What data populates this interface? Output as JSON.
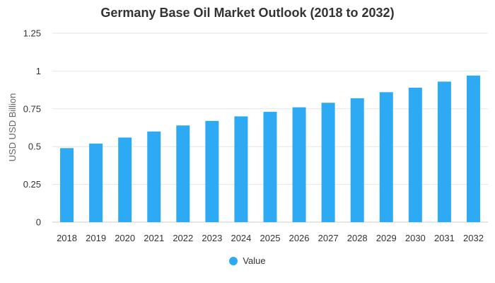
{
  "chart_data": {
    "type": "bar",
    "title": "Germany Base Oil Market Outlook (2018 to 2032)",
    "ylabel": "USD USD Billion",
    "xlabel": "",
    "categories": [
      "2018",
      "2019",
      "2020",
      "2021",
      "2022",
      "2023",
      "2024",
      "2025",
      "2026",
      "2027",
      "2028",
      "2029",
      "2030",
      "2031",
      "2032"
    ],
    "series": [
      {
        "name": "Value",
        "color": "#2eaaf5",
        "values": [
          0.49,
          0.52,
          0.56,
          0.6,
          0.64,
          0.67,
          0.7,
          0.73,
          0.76,
          0.79,
          0.82,
          0.86,
          0.89,
          0.93,
          0.97
        ]
      }
    ],
    "yticks": [
      "0",
      "0.25",
      "0.5",
      "0.75",
      "1",
      "1.25"
    ],
    "ylim": [
      0,
      1.25
    ],
    "grid": true,
    "legend_position": "bottom"
  }
}
